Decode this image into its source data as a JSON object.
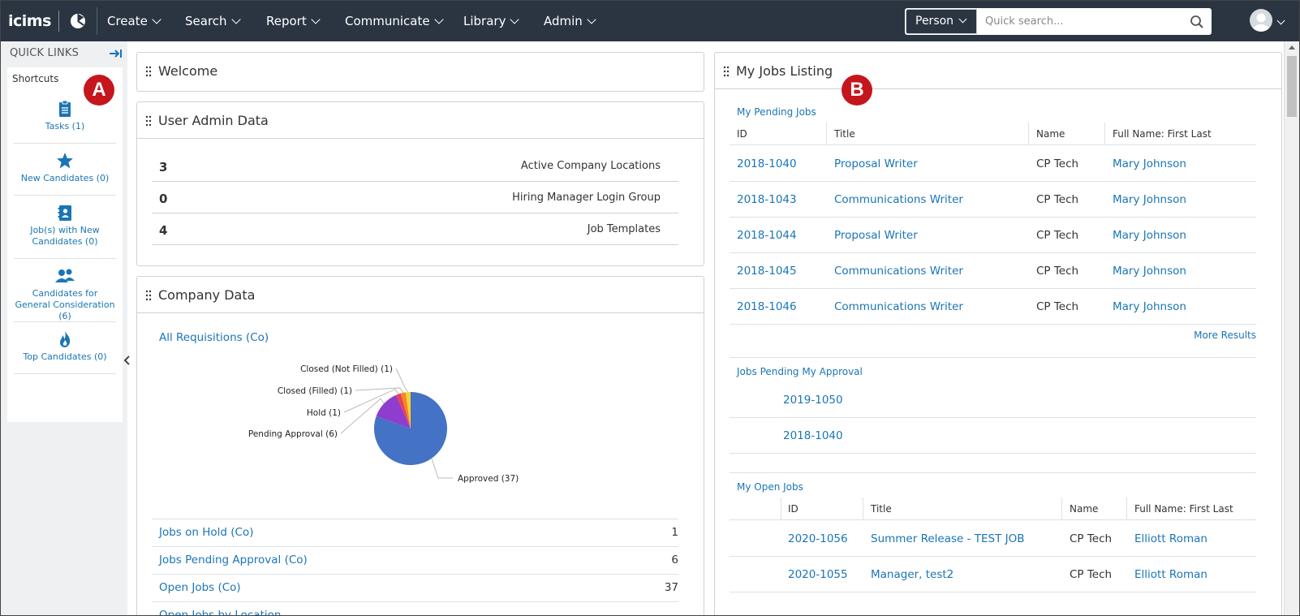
{
  "topnav": {
    "logo": "icims",
    "menu": [
      {
        "label": "Create"
      },
      {
        "label": "Search"
      },
      {
        "label": "Report"
      },
      {
        "label": "Communicate"
      },
      {
        "label": "Library"
      },
      {
        "label": "Admin"
      }
    ],
    "search_type": "Person",
    "search_placeholder": "Quick search..."
  },
  "sidebar": {
    "title": "QUICK LINKS",
    "shortcuts_label": "Shortcuts",
    "items": [
      {
        "label": "Tasks (1)",
        "icon": "clipboard-icon"
      },
      {
        "label": "New Candidates (0)",
        "icon": "star-icon"
      },
      {
        "label": "Job(s) with New Candidates (0)",
        "icon": "contact-book-icon"
      },
      {
        "label": "Candidates for General Consideration (6)",
        "icon": "users-icon"
      },
      {
        "label": "Top Candidates (0)",
        "icon": "flame-icon"
      }
    ]
  },
  "badges": {
    "a": "A",
    "b": "B"
  },
  "welcome": {
    "title": "Welcome"
  },
  "user_admin": {
    "title": "User Admin Data",
    "rows": [
      {
        "value": "3",
        "label": "Active Company Locations"
      },
      {
        "value": "0",
        "label": "Hiring Manager Login Group"
      },
      {
        "value": "4",
        "label": "Job Templates"
      }
    ]
  },
  "company": {
    "title": "Company Data",
    "requisitions_link": "All Requisitions (Co)",
    "rows": [
      {
        "label": "Jobs on Hold (Co)",
        "value": "1"
      },
      {
        "label": "Jobs Pending Approval (Co)",
        "value": "6"
      },
      {
        "label": "Open Jobs (Co)",
        "value": "37"
      },
      {
        "label": "Open Jobs by Location",
        "value": ""
      }
    ]
  },
  "chart_data": {
    "type": "pie",
    "slices": [
      {
        "label": "Approved (37)",
        "value": 37,
        "color": "#4472c4"
      },
      {
        "label": "Pending Approval (6)",
        "value": 6,
        "color": "#8e3dcf"
      },
      {
        "label": "Hold (1)",
        "value": 1,
        "color": "#e8405a"
      },
      {
        "label": "Closed (Filled) (1)",
        "value": 1,
        "color": "#f28a1c"
      },
      {
        "label": "Closed (Not Filled) (1)",
        "value": 1,
        "color": "#f6d13a"
      }
    ]
  },
  "jobs": {
    "title": "My Jobs Listing",
    "pending": {
      "title": "My Pending Jobs",
      "headers": [
        "ID",
        "Title",
        "Name",
        "Full Name: First Last"
      ],
      "rows": [
        {
          "id": "2018-1040",
          "title": "Proposal Writer",
          "name": "CP Tech",
          "full_name": "Mary Johnson"
        },
        {
          "id": "2018-1043",
          "title": "Communications Writer",
          "name": "CP Tech",
          "full_name": "Mary Johnson"
        },
        {
          "id": "2018-1044",
          "title": "Proposal Writer",
          "name": "CP Tech",
          "full_name": "Mary Johnson"
        },
        {
          "id": "2018-1045",
          "title": "Communications Writer",
          "name": "CP Tech",
          "full_name": "Mary Johnson"
        },
        {
          "id": "2018-1046",
          "title": "Communications Writer",
          "name": "CP Tech",
          "full_name": "Mary Johnson"
        }
      ],
      "more": "More Results"
    },
    "approval": {
      "title": "Jobs Pending My Approval",
      "rows": [
        "2019-1050",
        "2018-1040"
      ]
    },
    "open": {
      "title": "My Open Jobs",
      "headers": [
        "ID",
        "Title",
        "Name",
        "Full Name: First Last"
      ],
      "rows": [
        {
          "id": "2020-1056",
          "title": "Summer Release - TEST JOB",
          "name": "CP Tech",
          "full_name": "Elliott Roman"
        },
        {
          "id": "2020-1055",
          "title": "Manager, test2",
          "name": "CP Tech",
          "full_name": "Elliott Roman"
        }
      ]
    }
  }
}
